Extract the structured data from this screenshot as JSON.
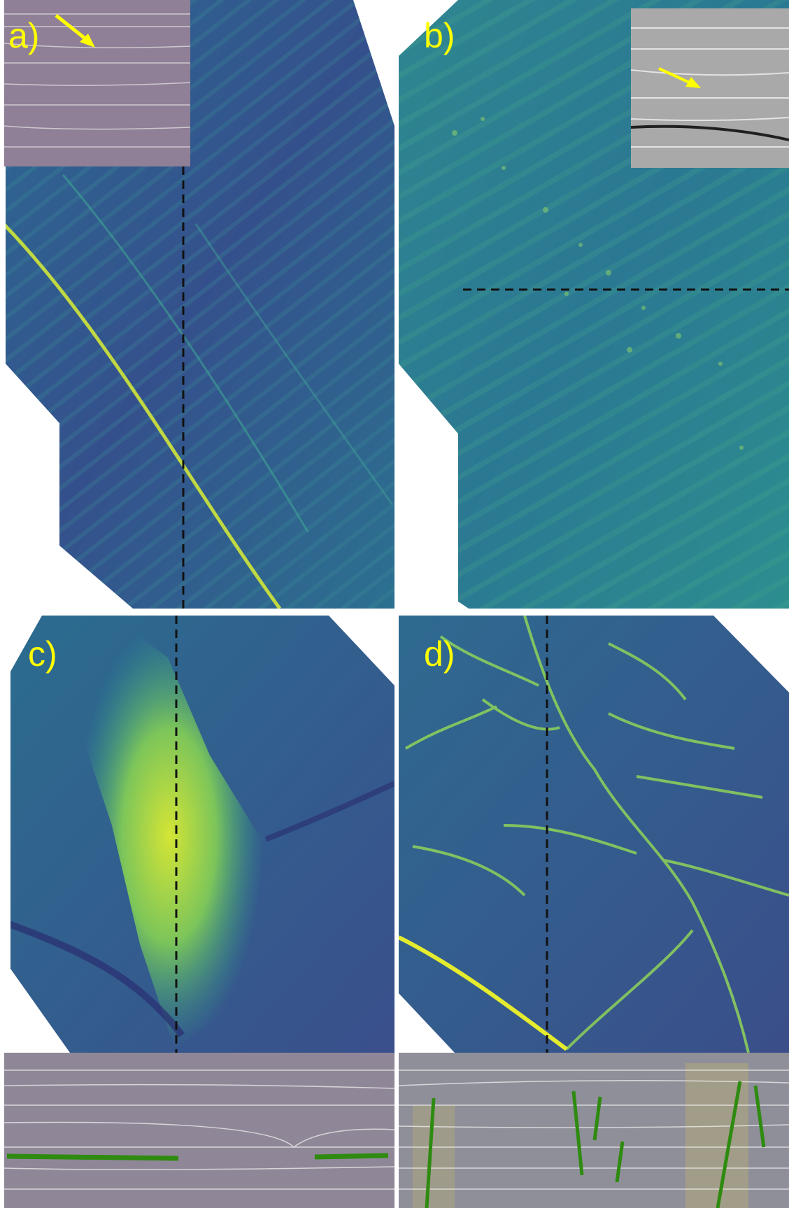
{
  "figure": {
    "panels": [
      {
        "id": "a",
        "label": "a)"
      },
      {
        "id": "b",
        "label": "b)"
      },
      {
        "id": "c",
        "label": "c)"
      },
      {
        "id": "d",
        "label": "d)"
      }
    ]
  },
  "colors": {
    "viridis_dark": "#3b3a8a",
    "viridis_mid": "#2b8a94",
    "viridis_bright": "#d4e535",
    "label_yellow": "#ffff00",
    "dashed_line": "#111111",
    "fault_green": "#2e8b10",
    "seismic_gray": "#9a9a9a",
    "seismic_purple": "#8c7d98"
  }
}
